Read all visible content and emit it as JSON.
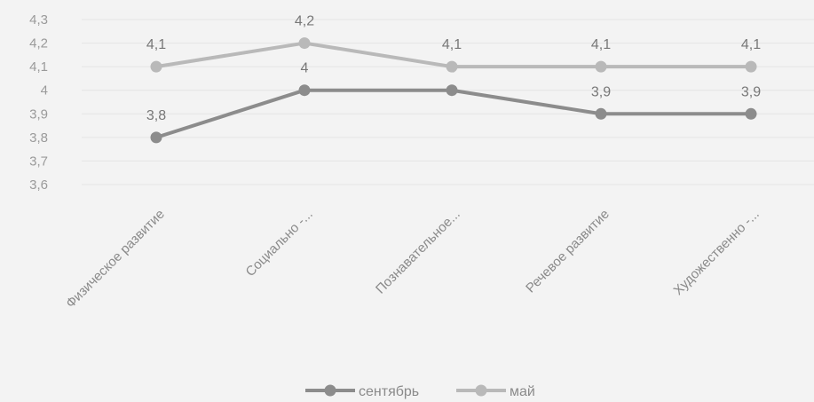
{
  "chart_data": {
    "type": "line",
    "categories": [
      "Физическое развитие",
      "Социально -...",
      "Познавательное...",
      "Речевое развитие",
      "Художественно -..."
    ],
    "series": [
      {
        "name": "сентябрь",
        "values": [
          3.8,
          4.0,
          4.0,
          3.9,
          3.9
        ],
        "labels": [
          "3,8",
          "4",
          "4",
          "3,9",
          "3,9"
        ],
        "color": "#8c8c8c"
      },
      {
        "name": "май",
        "values": [
          4.1,
          4.2,
          4.1,
          4.1,
          4.1
        ],
        "labels": [
          "4,1",
          "4,2",
          "4,1",
          "4,1",
          "4,1"
        ],
        "color": "#b9b9b9"
      }
    ],
    "y_ticks": [
      "4,3",
      "4,2",
      "4,1",
      "4",
      "3,9",
      "3,8",
      "3,7",
      "3,6"
    ],
    "y_tick_values": [
      4.3,
      4.2,
      4.1,
      4.0,
      3.9,
      3.8,
      3.7,
      3.6
    ],
    "ylim": [
      3.6,
      4.3
    ],
    "grid": true,
    "legend_position": "bottom"
  }
}
